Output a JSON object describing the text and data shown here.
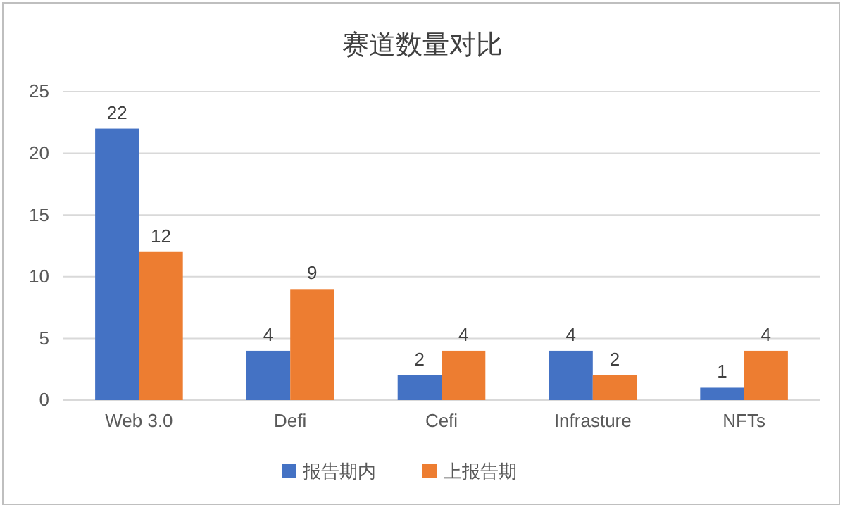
{
  "chart_data": {
    "type": "bar",
    "title": "赛道数量对比",
    "categories": [
      "Web 3.0",
      "Defi",
      "Cefi",
      "Infrasture",
      "NFTs"
    ],
    "series": [
      {
        "name": "报告期内",
        "color": "#4472c4",
        "values": [
          22,
          4,
          2,
          4,
          1
        ]
      },
      {
        "name": "上报告期",
        "color": "#ed7d31",
        "values": [
          12,
          9,
          4,
          2,
          4
        ]
      }
    ],
    "ylim": [
      0,
      25
    ],
    "yticks": [
      0,
      5,
      10,
      15,
      20,
      25
    ],
    "grid": "y",
    "legend": "bottom",
    "data_labels": true
  }
}
